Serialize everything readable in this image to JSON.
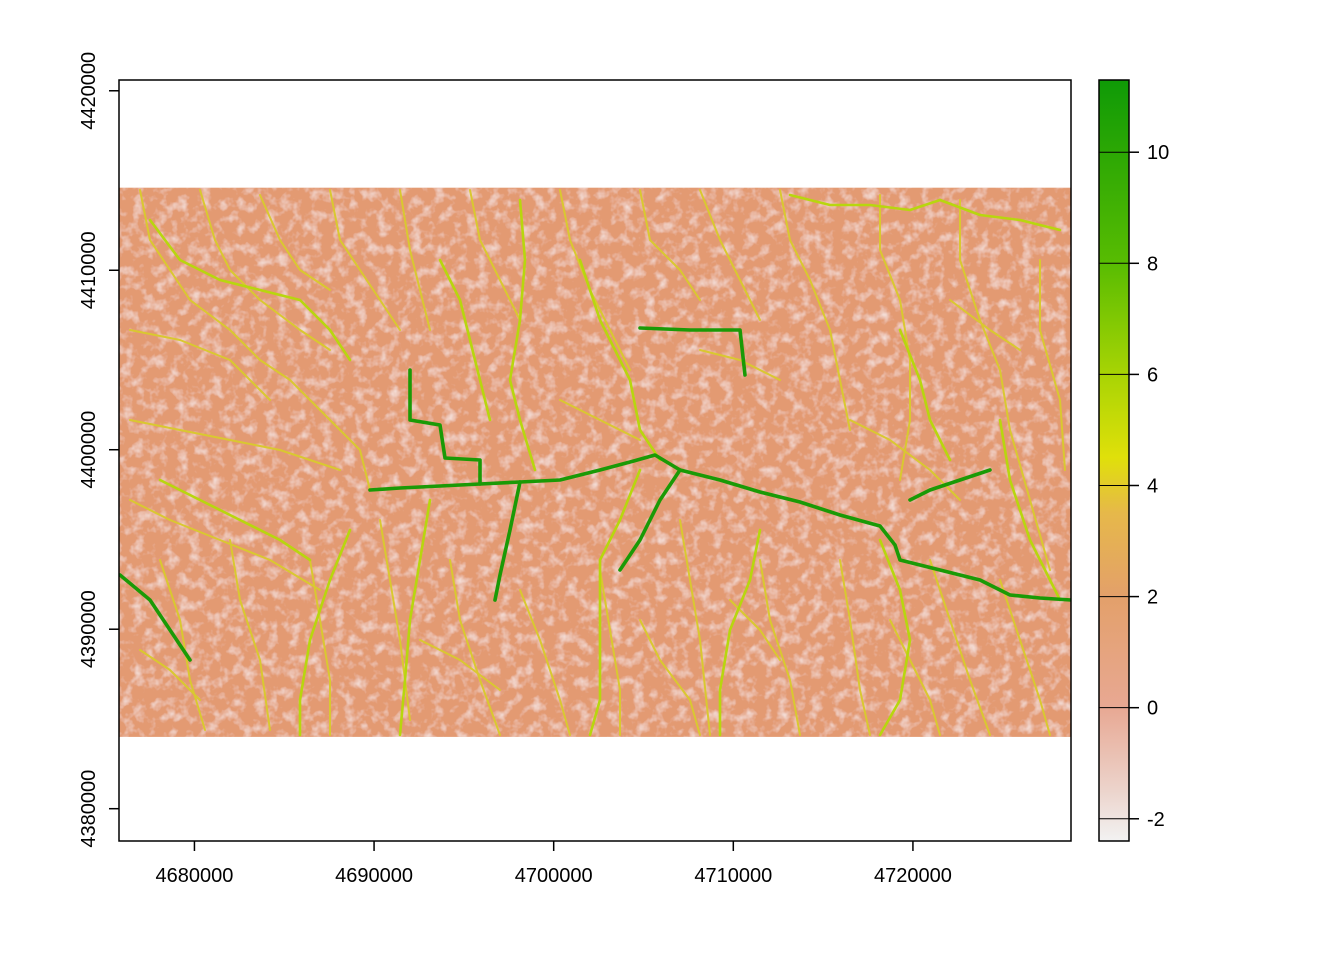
{
  "map": {
    "x_ticks": [
      "4680000",
      "4690000",
      "4700000",
      "4710000",
      "4720000"
    ],
    "y_ticks": [
      "4380000",
      "4390000",
      "4400000",
      "4410000",
      "4420000"
    ],
    "x_range": [
      4675800,
      4728800
    ],
    "y_range": [
      4378200,
      4420600
    ],
    "raster_extent": {
      "x": [
        4675800,
        4728800
      ],
      "y": [
        4384000,
        4414600
      ]
    },
    "colors": {
      "low": "#f2f2f2",
      "terrain_light": "#e8b4a2",
      "terrain": "#e39a72",
      "stream_minor": "#d9c830",
      "stream_mid": "#b8d60e",
      "stream_major": "#1a9a06"
    }
  },
  "legend": {
    "ticks": [
      "-2",
      "0",
      "2",
      "4",
      "6",
      "8",
      "10"
    ],
    "tick_values": [
      -2,
      0,
      2,
      4,
      6,
      8,
      10
    ],
    "range": [
      -2.4,
      11.3
    ],
    "stops": [
      {
        "value": -2.4,
        "color": "#f2f2f2"
      },
      {
        "value": -1.5,
        "color": "#ecd4cc"
      },
      {
        "value": 0,
        "color": "#e8a893"
      },
      {
        "value": 2,
        "color": "#e3a06a"
      },
      {
        "value": 3.5,
        "color": "#e6b84a"
      },
      {
        "value": 4.5,
        "color": "#e0e00a"
      },
      {
        "value": 6,
        "color": "#a8d404"
      },
      {
        "value": 8,
        "color": "#58bc02"
      },
      {
        "value": 11.3,
        "color": "#0f9a06"
      }
    ]
  }
}
